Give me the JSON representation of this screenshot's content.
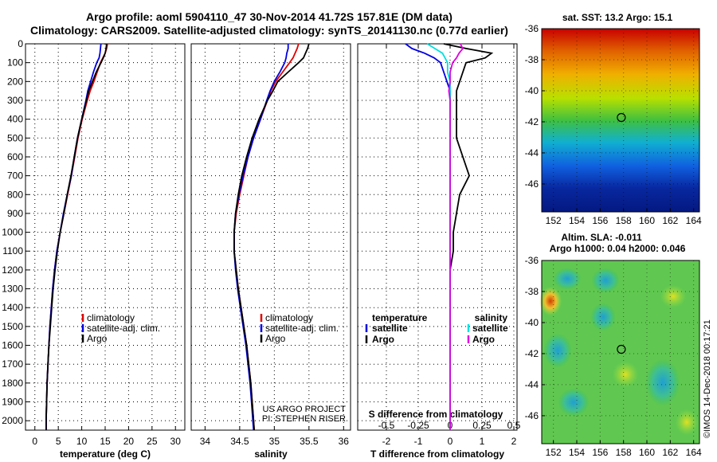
{
  "header": {
    "line1": "Argo profile: aoml 5904110_47 30-Nov-2014 41.72S 157.81E (DM data)",
    "line2": "Climatology: CARS2009. Satellite-adjusted climatology: synTS_20141130.nc (0.77d earlier)"
  },
  "colors": {
    "climatology": "#e00000",
    "satellite": "#0000e0",
    "argo": "#000000",
    "sat_temp": "#0000e0",
    "sat_sal": "#00e0e0",
    "argo_sal": "#e000e0"
  },
  "chart_data": [
    {
      "type": "line",
      "xlabel": "temperature (deg C)",
      "ylabel": "",
      "xlim": [
        -2,
        32
      ],
      "ylim": [
        2050,
        0
      ],
      "xticks": [
        "0",
        "5",
        "10",
        "15",
        "20",
        "25",
        "30"
      ],
      "yticks": [
        "0",
        "100",
        "200",
        "300",
        "400",
        "500",
        "600",
        "700",
        "800",
        "900",
        "1000",
        "1100",
        "1200",
        "1300",
        "1400",
        "1500",
        "1600",
        "1700",
        "1800",
        "1900",
        "2000"
      ],
      "legend": [
        "climatology",
        "satellite-adj. clim.",
        "Argo"
      ],
      "depth": [
        0,
        25,
        50,
        75,
        100,
        150,
        200,
        250,
        300,
        400,
        500,
        600,
        700,
        800,
        900,
        1000,
        1100,
        1200,
        1300,
        1400,
        1500,
        1600,
        1700,
        1800,
        1900,
        2000,
        2050
      ],
      "series": [
        {
          "name": "climatology",
          "color": "#e00000",
          "values": [
            15.5,
            15.3,
            15.0,
            14.5,
            14.0,
            13.3,
            12.6,
            11.8,
            11.2,
            10.1,
            9.2,
            8.5,
            7.8,
            7.0,
            6.2,
            5.4,
            4.7,
            4.2,
            3.8,
            3.5,
            3.2,
            3.0,
            2.8,
            2.6,
            2.5,
            2.4,
            2.4
          ]
        },
        {
          "name": "satellite-adj. clim.",
          "color": "#0000e0",
          "values": [
            14.1,
            14.0,
            13.9,
            13.7,
            13.2,
            12.5,
            11.9,
            11.3,
            10.9,
            10.0,
            9.1,
            8.4,
            7.8,
            6.9,
            6.1,
            5.4,
            4.7,
            4.2,
            3.8,
            3.5,
            3.2,
            3.0,
            2.8,
            2.6,
            2.5,
            2.4,
            2.4
          ]
        },
        {
          "name": "Argo",
          "color": "#000000",
          "values": [
            15.3,
            15.2,
            15.0,
            14.6,
            14.1,
            13.1,
            12.3,
            11.5,
            11.0,
            10.0,
            9.1,
            8.4,
            7.7,
            6.9,
            6.2,
            5.4,
            4.8,
            4.3,
            3.9,
            3.6,
            3.3,
            3.0,
            2.8,
            2.6,
            2.5,
            2.4,
            2.4
          ]
        }
      ]
    },
    {
      "type": "line",
      "xlabel": "salinity",
      "xlim": [
        33.8,
        36.1
      ],
      "ylim": [
        2050,
        0
      ],
      "xticks": [
        "34",
        "34.5",
        "35",
        "35.5",
        "36"
      ],
      "legend": [
        "climatology",
        "satellite-adj. clim.",
        "Argo"
      ],
      "depth": [
        0,
        25,
        50,
        75,
        100,
        150,
        200,
        250,
        300,
        400,
        500,
        600,
        700,
        800,
        900,
        1000,
        1100,
        1200,
        1300,
        1400,
        1500,
        1600,
        1700,
        1800,
        1900,
        2000,
        2050
      ],
      "series": [
        {
          "name": "climatology",
          "color": "#e00000",
          "values": [
            35.35,
            35.33,
            35.3,
            35.27,
            35.22,
            35.12,
            35.02,
            34.95,
            34.9,
            34.8,
            34.7,
            34.62,
            34.56,
            34.5,
            34.45,
            34.42,
            34.42,
            34.45,
            34.48,
            34.52,
            34.56,
            34.6,
            34.63,
            34.66,
            34.68,
            34.7,
            34.71
          ]
        },
        {
          "name": "satellite-adj. clim.",
          "color": "#0000e0",
          "values": [
            35.2,
            35.2,
            35.18,
            35.17,
            35.15,
            35.08,
            35.0,
            34.94,
            34.89,
            34.8,
            34.7,
            34.62,
            34.55,
            34.49,
            34.44,
            34.42,
            34.42,
            34.44,
            34.47,
            34.51,
            34.55,
            34.59,
            34.62,
            34.65,
            34.67,
            34.69,
            34.7
          ]
        },
        {
          "name": "Argo",
          "color": "#000000",
          "values": [
            35.5,
            35.48,
            35.45,
            35.42,
            35.35,
            35.2,
            35.05,
            34.98,
            34.9,
            34.78,
            34.68,
            34.6,
            34.53,
            34.48,
            34.44,
            34.42,
            34.42,
            34.45,
            34.48,
            34.52,
            34.56,
            34.6,
            34.63,
            34.66,
            34.68,
            34.7,
            34.71
          ]
        }
      ],
      "notes": [
        "US ARGO PROJECT",
        "PI: STEPHEN RISER"
      ]
    },
    {
      "type": "line",
      "xlabel": "T difference from climatology",
      "x2label": "S difference from climatology",
      "xlim": [
        -2.9,
        2.1
      ],
      "x2lim": [
        -0.725,
        0.525
      ],
      "ylim": [
        2050,
        0
      ],
      "xticks": [
        "-2",
        "-1",
        "0",
        "1",
        "2"
      ],
      "x2ticks": [
        "-0.5",
        "-0.25",
        "0",
        "0.25",
        "0.5"
      ],
      "legend_temperature": {
        "title": "temperature",
        "items": [
          "satellite",
          "Argo"
        ]
      },
      "legend_salinity": {
        "title": "salinity",
        "items": [
          "satellite",
          "Argo"
        ]
      },
      "depth": [
        0,
        25,
        50,
        75,
        100,
        150,
        200,
        250,
        300,
        400,
        500,
        600,
        700,
        800,
        900,
        1000,
        1100,
        1200,
        1300,
        1400,
        1500,
        1600,
        1700,
        1800,
        1900,
        2000,
        2050
      ],
      "series": [
        {
          "name": "temperature satellite",
          "color": "#0000e0",
          "axis": "T",
          "values": [
            -1.4,
            -1.2,
            -0.8,
            -0.5,
            -0.3,
            -0.2,
            -0.1,
            0,
            0,
            0,
            0,
            0,
            0,
            0,
            0,
            0,
            0,
            0,
            0,
            0,
            0,
            0,
            0,
            0,
            0,
            0,
            0
          ]
        },
        {
          "name": "temperature Argo",
          "color": "#000000",
          "axis": "T",
          "values": [
            -0.2,
            0.5,
            1.3,
            1.1,
            0.5,
            0.4,
            0.3,
            0.2,
            0.2,
            0.2,
            0.2,
            0.4,
            0.6,
            0.3,
            0.2,
            0.1,
            0.1,
            0,
            0,
            0,
            0,
            0,
            0,
            0,
            0,
            0,
            0
          ]
        },
        {
          "name": "salinity satellite",
          "color": "#00e0e0",
          "axis": "S",
          "values": [
            -0.18,
            -0.12,
            -0.06,
            -0.04,
            -0.02,
            -0.02,
            0,
            0,
            0,
            0,
            0,
            0,
            0,
            0,
            0,
            0,
            0,
            0,
            0,
            0,
            0,
            0,
            0,
            0,
            0,
            0,
            0
          ]
        },
        {
          "name": "salinity Argo",
          "color": "#e000e0",
          "axis": "S",
          "values": [
            0.08,
            0.1,
            0.07,
            0.05,
            0.02,
            0,
            0,
            -0.01,
            0,
            0,
            0,
            0,
            0,
            0,
            0,
            0,
            0,
            0,
            0,
            0,
            0,
            0,
            0,
            0,
            0,
            0,
            0
          ]
        }
      ]
    },
    {
      "type": "heatmap",
      "title": "sat. SST: 13.2 Argo: 15.1",
      "xlim": [
        151,
        164.5
      ],
      "ylim": [
        -47.8,
        -36
      ],
      "xticks": [
        "152",
        "154",
        "156",
        "158",
        "160",
        "162",
        "164"
      ],
      "yticks": [
        "-36",
        "-38",
        "-40",
        "-42",
        "-44",
        "-46"
      ],
      "marker": {
        "lon": 157.81,
        "lat": -41.72
      }
    },
    {
      "type": "heatmap",
      "title": "Altim. SLA: -0.011",
      "subtitle": "Argo h1000: 0.04 h2000: 0.046",
      "xlim": [
        151,
        164.5
      ],
      "ylim": [
        -47.8,
        -36
      ],
      "xticks": [
        "152",
        "154",
        "156",
        "158",
        "160",
        "162",
        "164"
      ],
      "yticks": [
        "-36",
        "-38",
        "-40",
        "-42",
        "-44",
        "-46"
      ],
      "marker": {
        "lon": 157.81,
        "lat": -41.72
      },
      "credit": "©IMOS 14-Dec-2018 00:17:21"
    }
  ]
}
